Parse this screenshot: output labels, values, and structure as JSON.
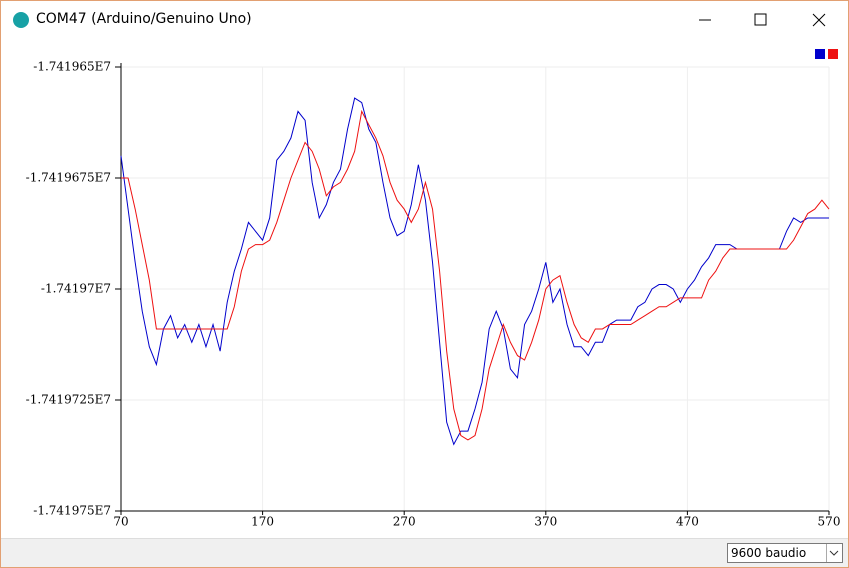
{
  "window": {
    "title": "COM47 (Arduino/Genuino Uno)"
  },
  "chart_data": {
    "type": "line",
    "x": [
      70,
      75,
      80,
      85,
      90,
      95,
      100,
      105,
      110,
      115,
      120,
      125,
      130,
      135,
      140,
      145,
      150,
      155,
      160,
      165,
      170,
      175,
      180,
      185,
      190,
      195,
      200,
      205,
      210,
      215,
      220,
      225,
      230,
      235,
      240,
      245,
      250,
      255,
      260,
      265,
      270,
      275,
      280,
      285,
      290,
      295,
      300,
      305,
      310,
      315,
      320,
      325,
      330,
      335,
      340,
      345,
      350,
      355,
      360,
      365,
      370,
      375,
      380,
      385,
      390,
      395,
      400,
      405,
      410,
      415,
      420,
      425,
      430,
      435,
      440,
      445,
      450,
      455,
      460,
      465,
      470,
      475,
      480,
      485,
      490,
      495,
      500,
      505,
      510,
      515,
      520,
      525,
      530,
      535,
      540,
      545,
      550,
      555,
      560,
      565,
      570
    ],
    "series": [
      {
        "color": "#0000cc",
        "values": [
          -17419670,
          -17419682,
          -17419694,
          -17419705,
          -17419713,
          -17419717,
          -17419709,
          -17419706,
          -17419711,
          -17419708,
          -17419712,
          -17419708,
          -17419713,
          -17419708,
          -17419714,
          -17419703,
          -17419696,
          -17419691,
          -17419685,
          -17419687,
          -17419689,
          -17419684,
          -17419671,
          -17419669,
          -17419666,
          -17419660,
          -17419662,
          -17419676,
          -17419684,
          -17419681,
          -17419676,
          -17419673,
          -17419664,
          -17419657,
          -17419658,
          -17419664,
          -17419667,
          -17419676,
          -17419684,
          -17419688,
          -17419687,
          -17419681,
          -17419672,
          -17419680,
          -17419694,
          -17419712,
          -17419730,
          -17419735,
          -17419732,
          -17419732,
          -17419727,
          -17419721,
          -17419709,
          -17419705,
          -17419709,
          -17419718,
          -17419720,
          -17419708,
          -17419705,
          -17419700,
          -17419694,
          -17419703,
          -17419700,
          -17419708,
          -17419713,
          -17419713,
          -17419715,
          -17419712,
          -17419712,
          -17419708,
          -17419707,
          -17419707,
          -17419707,
          -17419704,
          -17419703,
          -17419700,
          -17419699,
          -17419699,
          -17419700,
          -17419703,
          -17419700,
          -17419698,
          -17419695,
          -17419693,
          -17419690,
          -17419690,
          -17419690,
          -17419691,
          -17419691,
          -17419691,
          -17419691,
          -17419691,
          -17419691,
          -17419691,
          -17419687,
          -17419684,
          -17419685,
          -17419684,
          -17419684,
          -17419684,
          -17419684
        ]
      },
      {
        "color": "#ee1111",
        "values": [
          -17419675,
          -17419675,
          -17419682,
          -17419690,
          -17419698,
          -17419709,
          -17419709,
          -17419709,
          -17419709,
          -17419709,
          -17419709,
          -17419709,
          -17419709,
          -17419709,
          -17419709,
          -17419709,
          -17419704,
          -17419696,
          -17419691,
          -17419690,
          -17419690,
          -17419689,
          -17419685,
          -17419680,
          -17419675,
          -17419671,
          -17419667,
          -17419669,
          -17419673,
          -17419679,
          -17419677,
          -17419676,
          -17419673,
          -17419669,
          -17419660,
          -17419663,
          -17419666,
          -17419670,
          -17419676,
          -17419680,
          -17419682,
          -17419685,
          -17419682,
          -17419676,
          -17419682,
          -17419696,
          -17419714,
          -17419727,
          -17419733,
          -17419734,
          -17419733,
          -17419727,
          -17419718,
          -17419713,
          -17419708,
          -17419712,
          -17419715,
          -17419716,
          -17419712,
          -17419707,
          -17419700,
          -17419698,
          -17419697,
          -17419703,
          -17419708,
          -17419711,
          -17419712,
          -17419709,
          -17419709,
          -17419708,
          -17419708,
          -17419708,
          -17419708,
          -17419707,
          -17419706,
          -17419705,
          -17419704,
          -17419704,
          -17419703,
          -17419702,
          -17419702,
          -17419702,
          -17419702,
          -17419698,
          -17419696,
          -17419693,
          -17419691,
          -17419691,
          -17419691,
          -17419691,
          -17419691,
          -17419691,
          -17419691,
          -17419691,
          -17419691,
          -17419689,
          -17419686,
          -17419683,
          -17419682,
          -17419680,
          -17419682
        ]
      }
    ],
    "xlim": [
      70,
      570
    ],
    "xticks": [
      70,
      170,
      270,
      370,
      470,
      570
    ],
    "ylim": [
      -17419750,
      -17419650
    ],
    "yticks": [
      {
        "value": -17419650,
        "label": "-1.741965E7"
      },
      {
        "value": -17419675,
        "label": "-1.7419675E7"
      },
      {
        "value": -17419700,
        "label": "-1.74197E7"
      },
      {
        "value": -17419725,
        "label": "-1.7419725E7"
      },
      {
        "value": -17419750,
        "label": "-1.741975E7"
      }
    ],
    "grid": true
  },
  "footer": {
    "baud": "9600 baudio"
  }
}
